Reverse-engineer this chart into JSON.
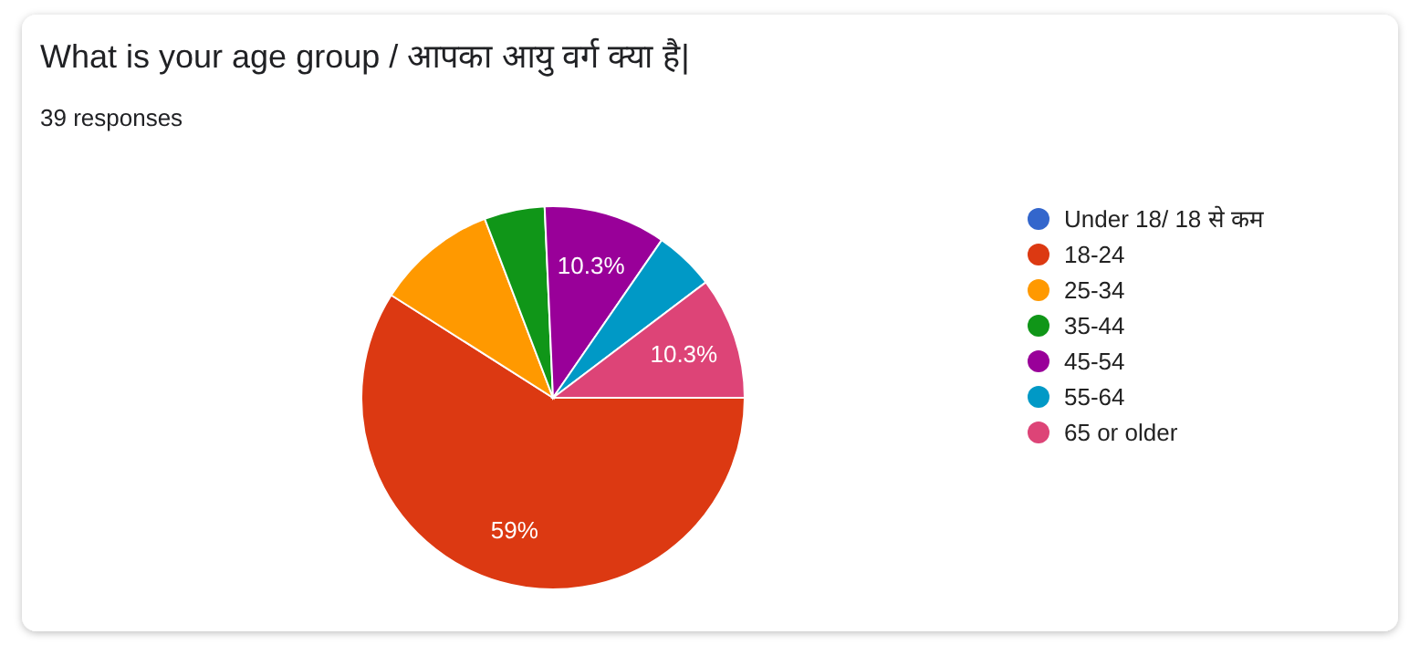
{
  "chart_data": {
    "type": "pie",
    "title": "What is your age group / आपका आयु वर्ग क्या है|",
    "subtitle": "39 responses",
    "categories": [
      "Under 18/ 18 से कम",
      "18-24",
      "25-34",
      "35-44",
      "45-54",
      "55-64",
      "65 or older"
    ],
    "values": [
      0,
      59,
      10.2,
      5.1,
      10.3,
      5.1,
      10.3
    ],
    "colors": [
      "#3366cc",
      "#dc3912",
      "#ff9900",
      "#109618",
      "#990099",
      "#0099c6",
      "#dd4477"
    ],
    "value_labels": [
      null,
      "59%",
      null,
      null,
      "10.3%",
      null,
      "10.3%"
    ],
    "legend": "right"
  }
}
